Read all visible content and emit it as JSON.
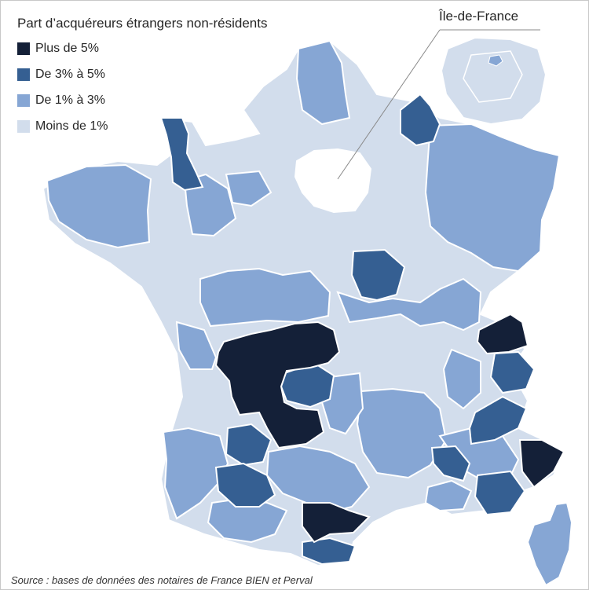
{
  "legend": {
    "title": "Part d’acquéreurs étrangers non-résidents",
    "items": [
      {
        "label": "Plus de 5%",
        "color": "#142038"
      },
      {
        "label": "De 3% à 5%",
        "color": "#355f92"
      },
      {
        "label": "De 1% à 3%",
        "color": "#86a6d4"
      },
      {
        "label": "Moins de 1%",
        "color": "#d2ddec"
      }
    ]
  },
  "inset": {
    "label": "Île-de-France"
  },
  "source": "Source : bases de données des notaires de France BIEN et Perval",
  "colors": {
    "border": "#ffffff",
    "inset_background": "#d2ddec",
    "paris_marker": "#86a6d4",
    "leader_line": "#888888"
  }
}
